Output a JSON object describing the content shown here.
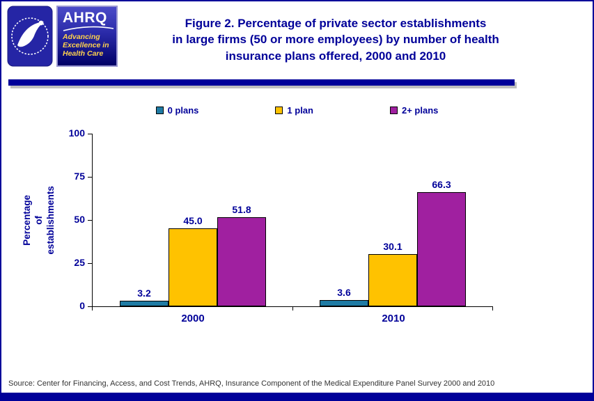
{
  "header": {
    "title_lines": [
      "Figure 2. Percentage of private sector establishments",
      "in large firms (50 or more employees) by number of health",
      "insurance plans offered, 2000 and 2010"
    ],
    "logos": {
      "ahrq_name": "AHRQ",
      "ahrq_tagline_lines": [
        "Advancing",
        "Excellence in",
        "Health Care"
      ]
    }
  },
  "icons": {
    "hhs_seal": "hhs-seal-icon",
    "ahrq_swoosh": "ahrq-swoosh-icon"
  },
  "chart_data": {
    "type": "bar",
    "title": "Percentage of private sector establishments in large firms (50 or more employees) by number of health insurance plans offered, 2000 and 2010",
    "categories": [
      "2000",
      "2010"
    ],
    "series": [
      {
        "name": "0 plans",
        "color": "#1F7BA4",
        "values": [
          3.2,
          3.6
        ],
        "labels": [
          "3.2",
          "3.6"
        ]
      },
      {
        "name": "1 plan",
        "color": "#FFC200",
        "values": [
          45.0,
          30.1
        ],
        "labels": [
          "45.0",
          "30.1"
        ]
      },
      {
        "name": "2+ plans",
        "color": "#A020A0",
        "values": [
          51.8,
          66.3
        ],
        "labels": [
          "51.8",
          "66.3"
        ]
      }
    ],
    "ylabel_lines": [
      "Percentage",
      "of establishments"
    ],
    "yticks": [
      0,
      25,
      50,
      75,
      100
    ],
    "ylim": [
      0,
      100
    ],
    "grid": false,
    "legend_position": "top"
  },
  "source": "Source: Center for Financing, Access, and Cost Trends, AHRQ, Insurance Component of the Medical Expenditure Panel Survey 2000 and 2010",
  "colors": {
    "navy": "#000099",
    "page_border": "#000099",
    "axis": "#000000"
  }
}
